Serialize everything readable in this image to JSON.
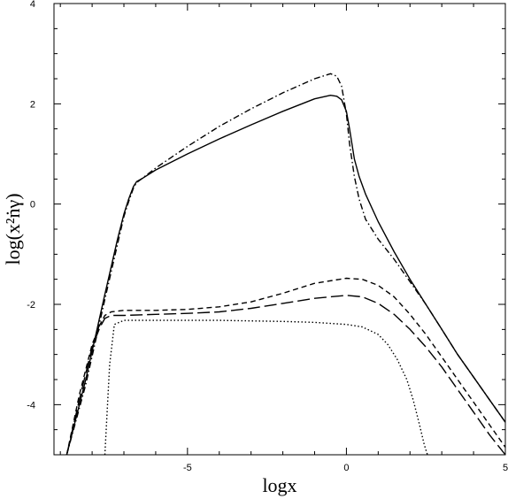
{
  "chart_data": {
    "type": "line",
    "xlabel": "logx",
    "ylabel": "log(x²ṅγ)",
    "xlim": [
      -9.2,
      5
    ],
    "ylim": [
      -5,
      4
    ],
    "xticks": [
      -5,
      0,
      5
    ],
    "xtick_labels": [
      "-5",
      "0",
      "5"
    ],
    "yticks": [
      -4,
      -2,
      0,
      2,
      4
    ],
    "ytick_labels": [
      "-4",
      "-2",
      "0",
      "2",
      "4"
    ],
    "grid": false,
    "legend": "none",
    "series": [
      {
        "style": "solid",
        "x": [
          -8.8,
          -8.2,
          -7.6,
          -7.2,
          -7.0,
          -6.85,
          -6.7,
          -6.6,
          -6.45,
          -6.0,
          -5.0,
          -4.0,
          -3.0,
          -2.0,
          -1.0,
          -0.5,
          -0.3,
          -0.15,
          0.0,
          0.1,
          0.25,
          0.4,
          0.6,
          1.0,
          1.5,
          2.0,
          2.5,
          3.0,
          3.5,
          4.0,
          4.5,
          5.0
        ],
        "y": [
          -5.0,
          -3.5,
          -1.8,
          -0.7,
          -0.2,
          0.1,
          0.35,
          0.45,
          0.5,
          0.68,
          1.0,
          1.3,
          1.58,
          1.85,
          2.1,
          2.17,
          2.15,
          2.08,
          1.85,
          1.5,
          0.9,
          0.55,
          0.2,
          -0.35,
          -0.95,
          -1.5,
          -2.0,
          -2.5,
          -3.0,
          -3.45,
          -3.9,
          -4.35
        ]
      },
      {
        "style": "dashdot",
        "x": [
          -8.8,
          -8.2,
          -7.6,
          -7.2,
          -7.0,
          -6.85,
          -6.7,
          -6.6,
          -6.45,
          -6.0,
          -5.0,
          -4.0,
          -3.0,
          -2.0,
          -1.0,
          -0.5,
          -0.3,
          -0.15,
          0.0,
          0.1,
          0.25,
          0.4,
          0.6,
          1.0,
          1.5,
          2.0,
          2.5,
          3.0,
          3.5,
          4.0,
          4.5,
          5.0
        ],
        "y": [
          -5.0,
          -3.6,
          -1.9,
          -0.8,
          -0.25,
          0.05,
          0.32,
          0.43,
          0.5,
          0.72,
          1.15,
          1.55,
          1.9,
          2.22,
          2.5,
          2.6,
          2.55,
          2.35,
          1.8,
          1.2,
          0.55,
          0.1,
          -0.3,
          -0.7,
          -1.1,
          -1.55,
          -2.0,
          -2.5,
          -3.0,
          -3.45,
          -3.9,
          -4.35
        ]
      },
      {
        "style": "dashed",
        "x": [
          -8.8,
          -8.4,
          -8.0,
          -7.75,
          -7.6,
          -7.4,
          -7.0,
          -6.0,
          -5.0,
          -4.0,
          -3.0,
          -2.0,
          -1.0,
          0.0,
          0.5,
          1.0,
          1.5,
          2.0,
          2.5,
          3.0,
          3.5,
          4.0,
          4.5,
          5.0
        ],
        "y": [
          -5.0,
          -3.8,
          -2.8,
          -2.4,
          -2.22,
          -2.15,
          -2.12,
          -2.12,
          -2.1,
          -2.05,
          -1.95,
          -1.78,
          -1.58,
          -1.48,
          -1.5,
          -1.62,
          -1.85,
          -2.2,
          -2.6,
          -3.05,
          -3.5,
          -3.95,
          -4.4,
          -4.85
        ]
      },
      {
        "style": "longdash",
        "x": [
          -8.8,
          -8.4,
          -8.0,
          -7.75,
          -7.6,
          -7.4,
          -7.0,
          -6.0,
          -5.0,
          -4.0,
          -3.0,
          -2.0,
          -1.0,
          0.0,
          0.5,
          1.0,
          1.5,
          2.0,
          2.5,
          3.0,
          3.5,
          4.0,
          4.5,
          5.0
        ],
        "y": [
          -5.0,
          -3.9,
          -2.85,
          -2.45,
          -2.28,
          -2.22,
          -2.22,
          -2.2,
          -2.18,
          -2.15,
          -2.08,
          -1.98,
          -1.88,
          -1.82,
          -1.85,
          -1.98,
          -2.2,
          -2.5,
          -2.85,
          -3.25,
          -3.7,
          -4.15,
          -4.6,
          -5.0
        ]
      },
      {
        "style": "dotted",
        "x": [
          -7.6,
          -7.45,
          -7.3,
          -7.0,
          -6.0,
          -5.0,
          -4.0,
          -3.0,
          -2.0,
          -1.0,
          0.0,
          0.5,
          1.0,
          1.3,
          1.6,
          1.9,
          2.1,
          2.3,
          2.45,
          2.55
        ],
        "y": [
          -5.0,
          -3.2,
          -2.4,
          -2.32,
          -2.32,
          -2.32,
          -2.32,
          -2.33,
          -2.34,
          -2.36,
          -2.4,
          -2.45,
          -2.6,
          -2.8,
          -3.1,
          -3.5,
          -3.9,
          -4.4,
          -4.8,
          -5.0
        ]
      }
    ]
  }
}
